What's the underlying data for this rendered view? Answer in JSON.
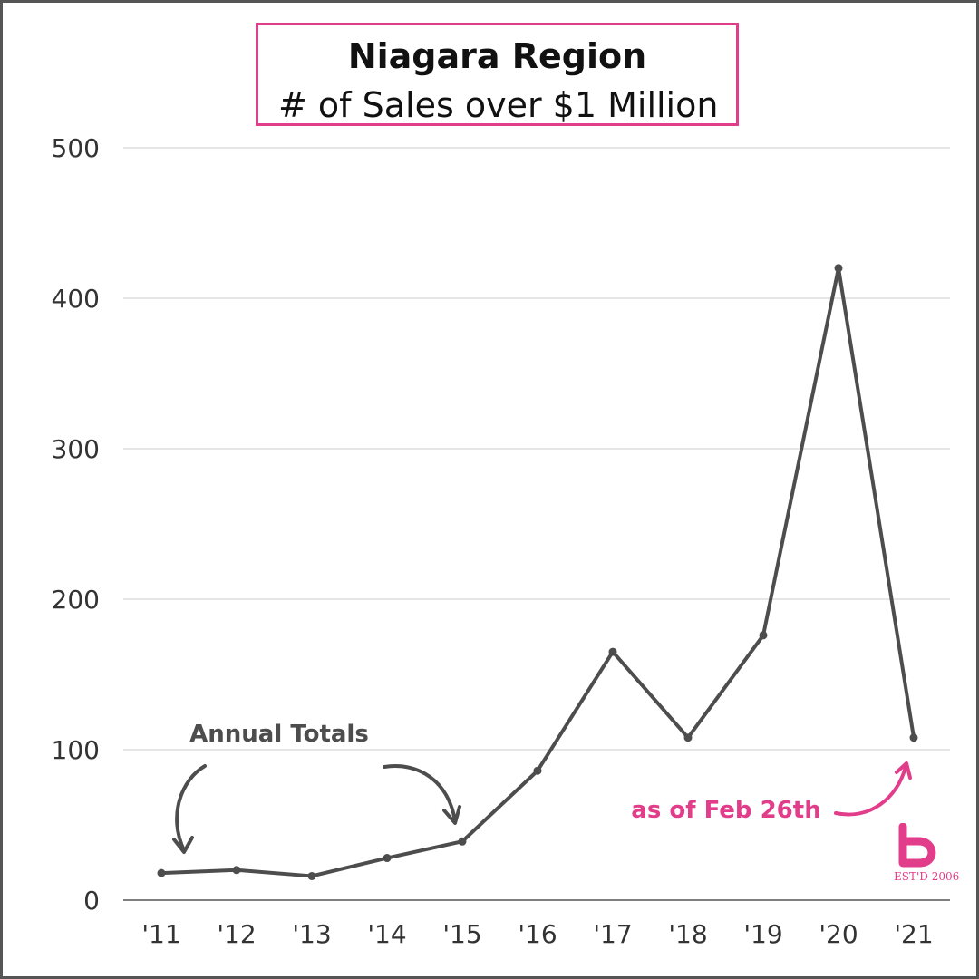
{
  "title": "Niagara Region",
  "subtitle": "# of Sales over $1 Million",
  "colors": {
    "line": "#4d4d4d",
    "accent": "#e23d8b",
    "grid": "#cccccc",
    "border": "#555555"
  },
  "annotations": {
    "annual_totals": "Annual Totals",
    "as_of": "as of Feb 26th"
  },
  "logo": {
    "text": "EST'D 2006"
  },
  "chart_data": {
    "type": "line",
    "title": "Niagara Region",
    "subtitle": "# of Sales over $1 Million",
    "categories": [
      "'11",
      "'12",
      "'13",
      "'14",
      "'15",
      "'16",
      "'17",
      "'18",
      "'19",
      "'20",
      "'21"
    ],
    "values": [
      18,
      20,
      16,
      28,
      39,
      86,
      165,
      108,
      176,
      420,
      108
    ],
    "ylim": [
      0,
      500
    ],
    "yticks": [
      0,
      100,
      200,
      300,
      400,
      500
    ],
    "grid": true,
    "legend": "none"
  }
}
